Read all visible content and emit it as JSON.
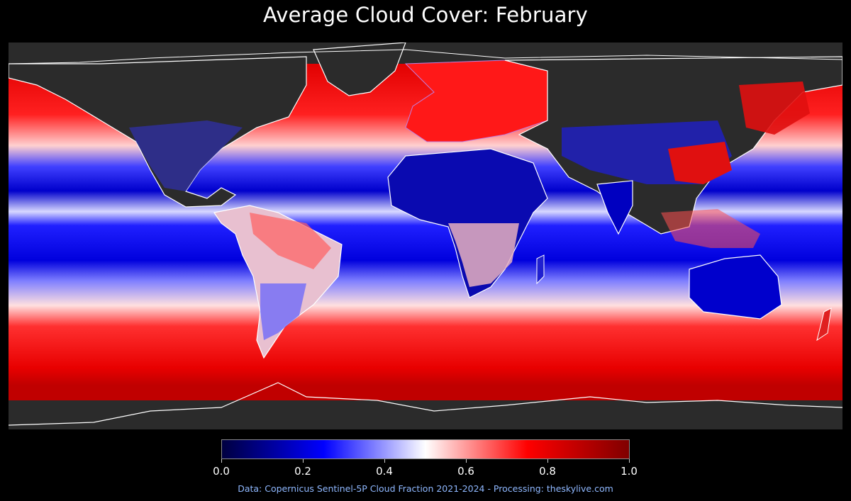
{
  "title": "Average Cloud Cover: February",
  "map": {
    "projection": "equirectangular",
    "land_nodata_color": "#2b2b2b",
    "coastline_color": "#ffffff",
    "border_color": "#b070d0"
  },
  "colorbar": {
    "colormap": "seismic",
    "stops": [
      "#000040",
      "#0000ff",
      "#ffffff",
      "#ff0000",
      "#800000"
    ],
    "min": 0.0,
    "max": 1.0,
    "ticks": [
      "0.0",
      "0.2",
      "0.4",
      "0.6",
      "0.8",
      "1.0"
    ]
  },
  "credit": {
    "text": "Data: Copernicus Sentinel-5P Cloud Fraction 2021-2024 - Processing: theskylive.com",
    "color": "#8fb8ff"
  }
}
